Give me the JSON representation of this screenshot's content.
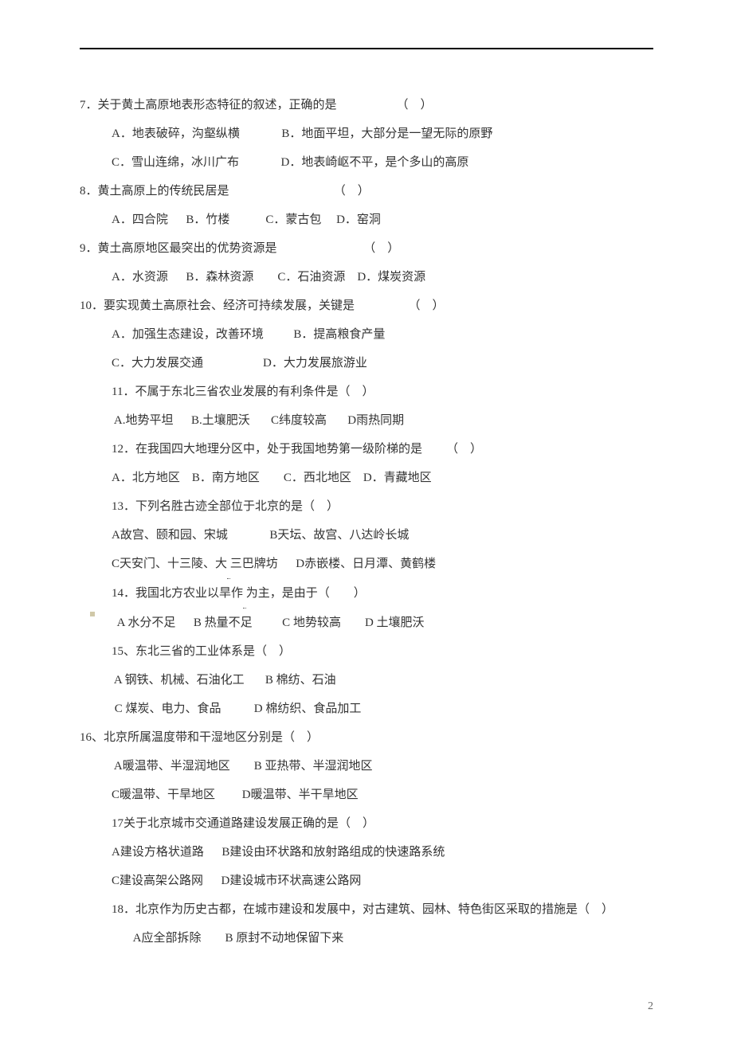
{
  "page_number": "2",
  "questions": {
    "q7": {
      "stem": "7．关于黄土高原地表形态特征的叙述，正确的是                    （    ）",
      "optA": "A．地表破碎，沟壑纵横",
      "optB": "B．地面平坦，大部分是一望无际的原野",
      "optC": "C．雪山连绵，冰川广布",
      "optD": "D．地表崎岖不平，是个多山的高原"
    },
    "q8": {
      "stem": "8．黄土高原上的传统民居是                                   （    ）",
      "options": "A．四合院      B．竹楼            C．蒙古包     D．窑洞"
    },
    "q9": {
      "stem": "9．黄土高原地区最突出的优势资源是                             （    ）",
      "options": "A．水资源      B．森林资源        C．石油资源    D．煤炭资源"
    },
    "q10": {
      "stem": "10．要实现黄土高原社会、经济可持续发展，关键是                  （    ）",
      "row1a": "A．加强生态建设，改善环境",
      "row1b": "B．提高粮食产量",
      "row2a": "C．大力发展交通",
      "row2b": "D．大力发展旅游业"
    },
    "q11": {
      "stem": "11．不属于东北三省农业发展的有利条件是（    ）",
      "options": " A.地势平坦      B.土壤肥沃       C纬度较高       D雨热同期"
    },
    "q12": {
      "stem": "12．在我国四大地理分区中，处于我国地势第一级阶梯的是        （    ）",
      "options": "A．北方地区    B．南方地区        C．西北地区    D．青藏地区"
    },
    "q13": {
      "stem": "13．下列名胜古迹全部位于北京的是（    ）",
      "row1": "A故宫、颐和园、宋城              B天坛、故宫、八达岭长城",
      "row2_a": "C天安门、十三陵、大",
      "row2_b": "三巴牌坊      D赤嵌楼、日月潭、黄鹤楼"
    },
    "q14": {
      "stem_a": "14．我国北方农业以旱作",
      "stem_b": "为主，是由于（　　）",
      "options": "  A 水分不足      B 热量不足          C 地势较高        D 土壤肥沃"
    },
    "q15": {
      "stem": "15、东北三省的工业体系是（    ）",
      "row1": " A 钢铁、机械、石油化工       B 棉纺、石油",
      "row2": " C 煤炭、电力、食品           D 棉纺织、食品加工"
    },
    "q16": {
      "stem": "16、北京所属温度带和干湿地区分别是（    ）",
      "row1": " A暖温带、半湿润地区        B 亚热带、半湿润地区",
      "row2": "C暖温带、干旱地区         D暖温带、半干旱地区"
    },
    "q17": {
      "stem": "17关于北京城市交通道路建设发展正确的是（    ）",
      "row1": "A建设方格状道路      B建设由环状路和放射路组成的快速路系统",
      "row2": "C建设高架公路网      D建设城市环状高速公路网"
    },
    "q18": {
      "stem": "18．北京作为历史古都，在城市建设和发展中，对古建筑、园林、特色街区采取的措施是（    ）",
      "options": "  A应全部拆除        B 原封不动地保留下来"
    }
  }
}
